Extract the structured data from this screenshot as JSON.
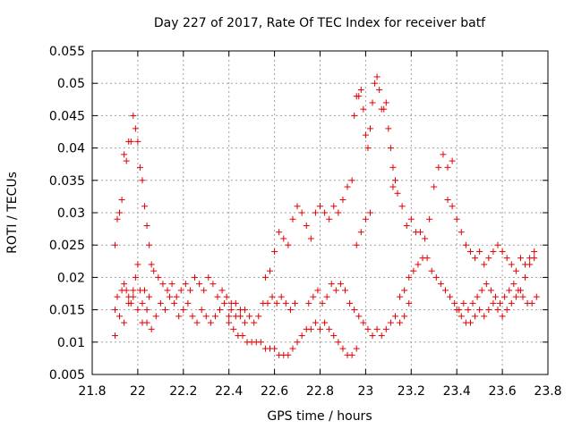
{
  "chart_data": {
    "type": "scatter",
    "title": "Day 227 of 2017, Rate Of TEC Index for receiver batf",
    "xlabel": "GPS time / hours",
    "ylabel": "ROTI / TECUs",
    "xlim": [
      21.8,
      23.8
    ],
    "ylim": [
      0.005,
      0.055
    ],
    "x_ticks": [
      21.8,
      22.0,
      22.2,
      22.4,
      22.6,
      22.8,
      23.0,
      23.2,
      23.4,
      23.6,
      23.8
    ],
    "x_tick_labels": [
      "21.8",
      "22",
      "22.2",
      "22.4",
      "22.6",
      "22.8",
      "23",
      "23.2",
      "23.4",
      "23.6",
      "23.8"
    ],
    "y_ticks": [
      0.005,
      0.01,
      0.015,
      0.02,
      0.025,
      0.03,
      0.035,
      0.04,
      0.045,
      0.05,
      0.055
    ],
    "y_tick_labels": [
      "0.005",
      "0.01",
      "0.015",
      "0.02",
      "0.025",
      "0.03",
      "0.035",
      "0.04",
      "0.045",
      "0.05",
      "0.055"
    ],
    "grid": true,
    "marker": "+",
    "color": "#e00000",
    "series": [
      {
        "name": "ROTI",
        "x": [
          21.9,
          21.91,
          21.92,
          21.93,
          21.94,
          21.95,
          21.96,
          21.97,
          21.98,
          21.99,
          22.0,
          22.01,
          22.02,
          22.03,
          22.04,
          22.05,
          22.06,
          21.9,
          21.91,
          21.93,
          21.94,
          21.95,
          21.96,
          21.97,
          21.98,
          21.99,
          22.0,
          22.01,
          22.02,
          22.03,
          22.04,
          22.05,
          21.9,
          21.92,
          21.94,
          21.96,
          21.98,
          22.0,
          22.02,
          22.04,
          22.06,
          22.08,
          22.1,
          22.12,
          22.14,
          22.16,
          22.18,
          22.2,
          22.22,
          22.24,
          22.26,
          22.28,
          22.3,
          22.32,
          22.34,
          22.36,
          22.38,
          22.4,
          22.07,
          22.09,
          22.11,
          22.13,
          22.15,
          22.17,
          22.19,
          22.21,
          22.23,
          22.25,
          22.27,
          22.29,
          22.31,
          22.33,
          22.35,
          22.37,
          22.39,
          22.41,
          22.43,
          22.45,
          22.47,
          22.4,
          22.42,
          22.44,
          22.46,
          22.48,
          22.5,
          22.52,
          22.54,
          22.56,
          22.58,
          22.6,
          22.62,
          22.64,
          22.66,
          22.68,
          22.41,
          22.43,
          22.45,
          22.47,
          22.49,
          22.51,
          22.53,
          22.55,
          22.57,
          22.59,
          22.61,
          22.63,
          22.65,
          22.67,
          22.69,
          22.56,
          22.58,
          22.6,
          22.62,
          22.64,
          22.66,
          22.68,
          22.7,
          22.72,
          22.74,
          22.76,
          22.78,
          22.8,
          22.82,
          22.84,
          22.86,
          22.88,
          22.9,
          22.92,
          22.94,
          22.7,
          22.72,
          22.74,
          22.76,
          22.78,
          22.8,
          22.82,
          22.84,
          22.86,
          22.88,
          22.9,
          22.92,
          22.94,
          22.96,
          22.75,
          22.77,
          22.79,
          22.81,
          22.83,
          22.85,
          22.87,
          22.89,
          22.91,
          22.93,
          22.95,
          22.97,
          22.99,
          23.01,
          23.03,
          23.05,
          23.07,
          23.09,
          23.11,
          23.13,
          23.15,
          23.17,
          23.19,
          22.95,
          22.96,
          22.97,
          22.98,
          22.99,
          23.0,
          23.01,
          23.02,
          23.03,
          23.04,
          23.05,
          23.06,
          23.07,
          23.08,
          23.09,
          23.1,
          23.11,
          23.12,
          23.13,
          22.96,
          22.98,
          23.0,
          23.02,
          23.12,
          23.14,
          23.16,
          23.18,
          23.2,
          23.22,
          23.24,
          23.26,
          23.28,
          23.3,
          23.32,
          23.34,
          23.36,
          23.38,
          23.15,
          23.17,
          23.19,
          23.21,
          23.23,
          23.25,
          23.27,
          23.29,
          23.31,
          23.33,
          23.35,
          23.37,
          23.39,
          23.41,
          23.43,
          23.45,
          23.47,
          23.49,
          23.51,
          23.53,
          23.55,
          23.57,
          23.59,
          23.61,
          23.63,
          23.65,
          23.67,
          23.69,
          23.71,
          23.73,
          23.75,
          23.36,
          23.38,
          23.4,
          23.42,
          23.44,
          23.46,
          23.48,
          23.5,
          23.52,
          23.54,
          23.56,
          23.58,
          23.6,
          23.62,
          23.64,
          23.66,
          23.68,
          23.7,
          23.72,
          23.74,
          23.4,
          23.42,
          23.44,
          23.46,
          23.48,
          23.5,
          23.52,
          23.54,
          23.56,
          23.58,
          23.6,
          23.62,
          23.64,
          23.66,
          23.68,
          23.7,
          23.72,
          23.74
        ],
        "y": [
          0.025,
          0.029,
          0.03,
          0.032,
          0.039,
          0.038,
          0.041,
          0.041,
          0.045,
          0.043,
          0.041,
          0.037,
          0.035,
          0.031,
          0.028,
          0.025,
          0.022,
          0.015,
          0.017,
          0.018,
          0.019,
          0.018,
          0.017,
          0.016,
          0.018,
          0.02,
          0.022,
          0.018,
          0.016,
          0.018,
          0.015,
          0.017,
          0.011,
          0.014,
          0.013,
          0.016,
          0.017,
          0.015,
          0.013,
          0.013,
          0.012,
          0.014,
          0.016,
          0.015,
          0.017,
          0.016,
          0.014,
          0.015,
          0.016,
          0.014,
          0.013,
          0.015,
          0.014,
          0.013,
          0.014,
          0.015,
          0.016,
          0.014,
          0.021,
          0.02,
          0.019,
          0.018,
          0.019,
          0.017,
          0.018,
          0.019,
          0.018,
          0.02,
          0.019,
          0.018,
          0.02,
          0.019,
          0.017,
          0.018,
          0.017,
          0.016,
          0.016,
          0.015,
          0.015,
          0.013,
          0.012,
          0.011,
          0.011,
          0.01,
          0.01,
          0.01,
          0.01,
          0.009,
          0.009,
          0.009,
          0.008,
          0.008,
          0.008,
          0.009,
          0.015,
          0.014,
          0.014,
          0.013,
          0.014,
          0.013,
          0.014,
          0.016,
          0.016,
          0.017,
          0.016,
          0.017,
          0.016,
          0.015,
          0.016,
          0.02,
          0.021,
          0.024,
          0.027,
          0.026,
          0.025,
          0.029,
          0.031,
          0.03,
          0.028,
          0.026,
          0.03,
          0.031,
          0.03,
          0.029,
          0.031,
          0.03,
          0.032,
          0.034,
          0.035,
          0.01,
          0.011,
          0.012,
          0.012,
          0.013,
          0.012,
          0.013,
          0.012,
          0.011,
          0.01,
          0.009,
          0.008,
          0.008,
          0.009,
          0.016,
          0.017,
          0.018,
          0.016,
          0.017,
          0.019,
          0.018,
          0.019,
          0.018,
          0.016,
          0.015,
          0.014,
          0.013,
          0.012,
          0.011,
          0.012,
          0.011,
          0.012,
          0.013,
          0.014,
          0.013,
          0.014,
          0.016,
          0.045,
          0.048,
          0.048,
          0.049,
          0.046,
          0.042,
          0.04,
          0.043,
          0.047,
          0.05,
          0.051,
          0.049,
          0.046,
          0.046,
          0.047,
          0.043,
          0.04,
          0.037,
          0.035,
          0.025,
          0.027,
          0.029,
          0.03,
          0.034,
          0.033,
          0.031,
          0.028,
          0.029,
          0.027,
          0.027,
          0.026,
          0.029,
          0.034,
          0.037,
          0.039,
          0.037,
          0.038,
          0.017,
          0.018,
          0.02,
          0.021,
          0.022,
          0.023,
          0.023,
          0.021,
          0.02,
          0.019,
          0.018,
          0.017,
          0.016,
          0.015,
          0.016,
          0.015,
          0.016,
          0.017,
          0.018,
          0.019,
          0.018,
          0.017,
          0.016,
          0.017,
          0.018,
          0.019,
          0.018,
          0.017,
          0.016,
          0.016,
          0.017,
          0.032,
          0.031,
          0.029,
          0.027,
          0.025,
          0.024,
          0.023,
          0.024,
          0.022,
          0.023,
          0.024,
          0.025,
          0.024,
          0.023,
          0.022,
          0.021,
          0.023,
          0.022,
          0.023,
          0.024,
          0.015,
          0.014,
          0.013,
          0.013,
          0.014,
          0.015,
          0.014,
          0.015,
          0.016,
          0.015,
          0.014,
          0.015,
          0.016,
          0.017,
          0.018,
          0.02,
          0.022,
          0.023
        ]
      }
    ]
  }
}
